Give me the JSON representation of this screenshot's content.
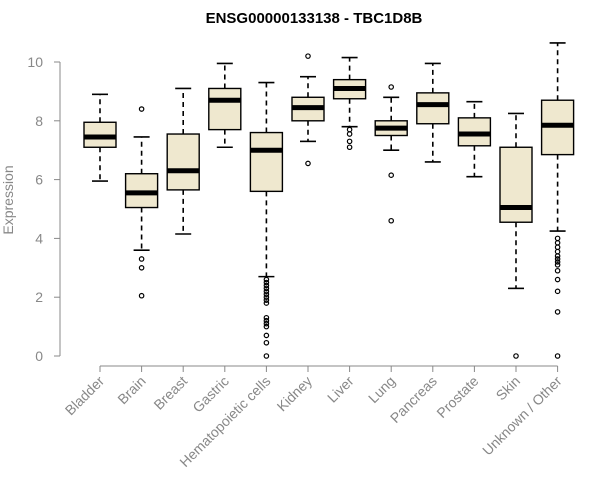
{
  "chart_data": {
    "type": "box",
    "title": "ENSG00000133138 - TBC1D8B",
    "xlabel": "",
    "ylabel": "Expression",
    "ylim": [
      0,
      10.5
    ],
    "yticks": [
      0,
      2,
      4,
      6,
      8,
      10
    ],
    "grid": false,
    "legend": "none",
    "box_fill": "#efe8cf",
    "categories": [
      "Bladder",
      "Brain",
      "Breast",
      "Gastric",
      "Hematopoietic cells",
      "Kidney",
      "Liver",
      "Lung",
      "Pancreas",
      "Prostate",
      "Skin",
      "Unknown / Other"
    ],
    "boxes": [
      {
        "name": "Bladder",
        "whisker_low": 5.95,
        "q1": 7.1,
        "median": 7.45,
        "q3": 7.95,
        "whisker_high": 8.9,
        "outliers": []
      },
      {
        "name": "Brain",
        "whisker_low": 3.6,
        "q1": 5.05,
        "median": 5.55,
        "q3": 6.2,
        "whisker_high": 7.45,
        "outliers": [
          8.4,
          3.3,
          3.0,
          2.05
        ]
      },
      {
        "name": "Breast",
        "whisker_low": 4.15,
        "q1": 5.65,
        "median": 6.3,
        "q3": 7.55,
        "whisker_high": 9.1,
        "outliers": []
      },
      {
        "name": "Gastric",
        "whisker_low": 7.1,
        "q1": 7.7,
        "median": 8.7,
        "q3": 9.1,
        "whisker_high": 9.95,
        "outliers": []
      },
      {
        "name": "Hematopoietic cells",
        "whisker_low": 2.7,
        "q1": 5.6,
        "median": 7.0,
        "q3": 7.6,
        "whisker_high": 9.3,
        "outliers": [
          2.6,
          2.5,
          2.4,
          2.3,
          2.2,
          2.1,
          2.0,
          1.9,
          1.8,
          1.3,
          1.2,
          1.1,
          1.0,
          0.7,
          0.45,
          0.0
        ]
      },
      {
        "name": "Kidney",
        "whisker_low": 7.3,
        "q1": 8.0,
        "median": 8.45,
        "q3": 8.8,
        "whisker_high": 9.5,
        "outliers": [
          10.2,
          6.55
        ]
      },
      {
        "name": "Liver",
        "whisker_low": 7.8,
        "q1": 8.75,
        "median": 9.1,
        "q3": 9.4,
        "whisker_high": 10.15,
        "outliers": [
          7.7,
          7.55,
          7.3,
          7.1
        ]
      },
      {
        "name": "Lung",
        "whisker_low": 7.0,
        "q1": 7.5,
        "median": 7.75,
        "q3": 8.0,
        "whisker_high": 8.8,
        "outliers": [
          9.15,
          6.15,
          4.6
        ]
      },
      {
        "name": "Pancreas",
        "whisker_low": 6.6,
        "q1": 7.9,
        "median": 8.55,
        "q3": 8.95,
        "whisker_high": 9.95,
        "outliers": []
      },
      {
        "name": "Prostate",
        "whisker_low": 6.1,
        "q1": 7.15,
        "median": 7.55,
        "q3": 8.1,
        "whisker_high": 8.65,
        "outliers": []
      },
      {
        "name": "Skin",
        "whisker_low": 2.3,
        "q1": 4.55,
        "median": 5.05,
        "q3": 7.1,
        "whisker_high": 8.25,
        "outliers": [
          0.0
        ]
      },
      {
        "name": "Unknown / Other",
        "whisker_low": 4.25,
        "q1": 6.85,
        "median": 7.85,
        "q3": 8.7,
        "whisker_high": 10.65,
        "outliers": [
          4.0,
          3.85,
          3.7,
          3.55,
          3.4,
          3.3,
          3.2,
          3.1,
          2.9,
          2.6,
          2.2,
          1.5,
          0.0
        ]
      }
    ]
  }
}
